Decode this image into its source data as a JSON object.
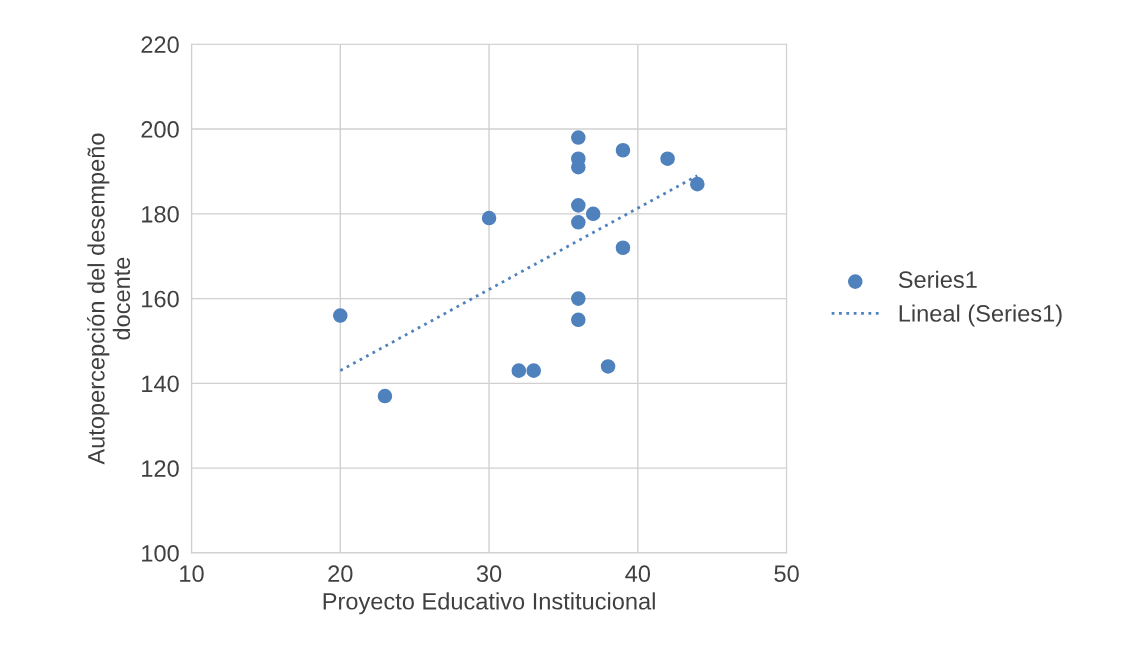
{
  "chart_data": {
    "type": "scatter",
    "xlabel": "Proyecto Educativo Institucional",
    "ylabel": "Autopercepción del desempeño\ndocente",
    "xlim": [
      10,
      50
    ],
    "xticks": [
      10,
      20,
      30,
      40,
      50
    ],
    "ylim": [
      100,
      220
    ],
    "yticks": [
      100,
      120,
      140,
      160,
      180,
      200,
      220
    ],
    "grid": true,
    "legend": "right",
    "series": [
      {
        "name": "Series1",
        "color": "#4f81bd",
        "marker": "circle",
        "x": [
          20,
          23,
          30,
          32,
          33,
          36,
          36,
          36,
          36,
          36,
          37,
          36,
          36,
          38,
          39,
          39,
          42,
          44
        ],
        "values": [
          156,
          137,
          179,
          143,
          143,
          198,
          193,
          191,
          182,
          178,
          180,
          160,
          155,
          144,
          195,
          172,
          193,
          187
        ]
      },
      {
        "name": "Lineal (Series1)",
        "type": "line",
        "color": "#4f81bd",
        "line_style": "dotted",
        "marker": "none",
        "x": [
          20,
          44
        ],
        "values": [
          143,
          189
        ]
      }
    ]
  }
}
